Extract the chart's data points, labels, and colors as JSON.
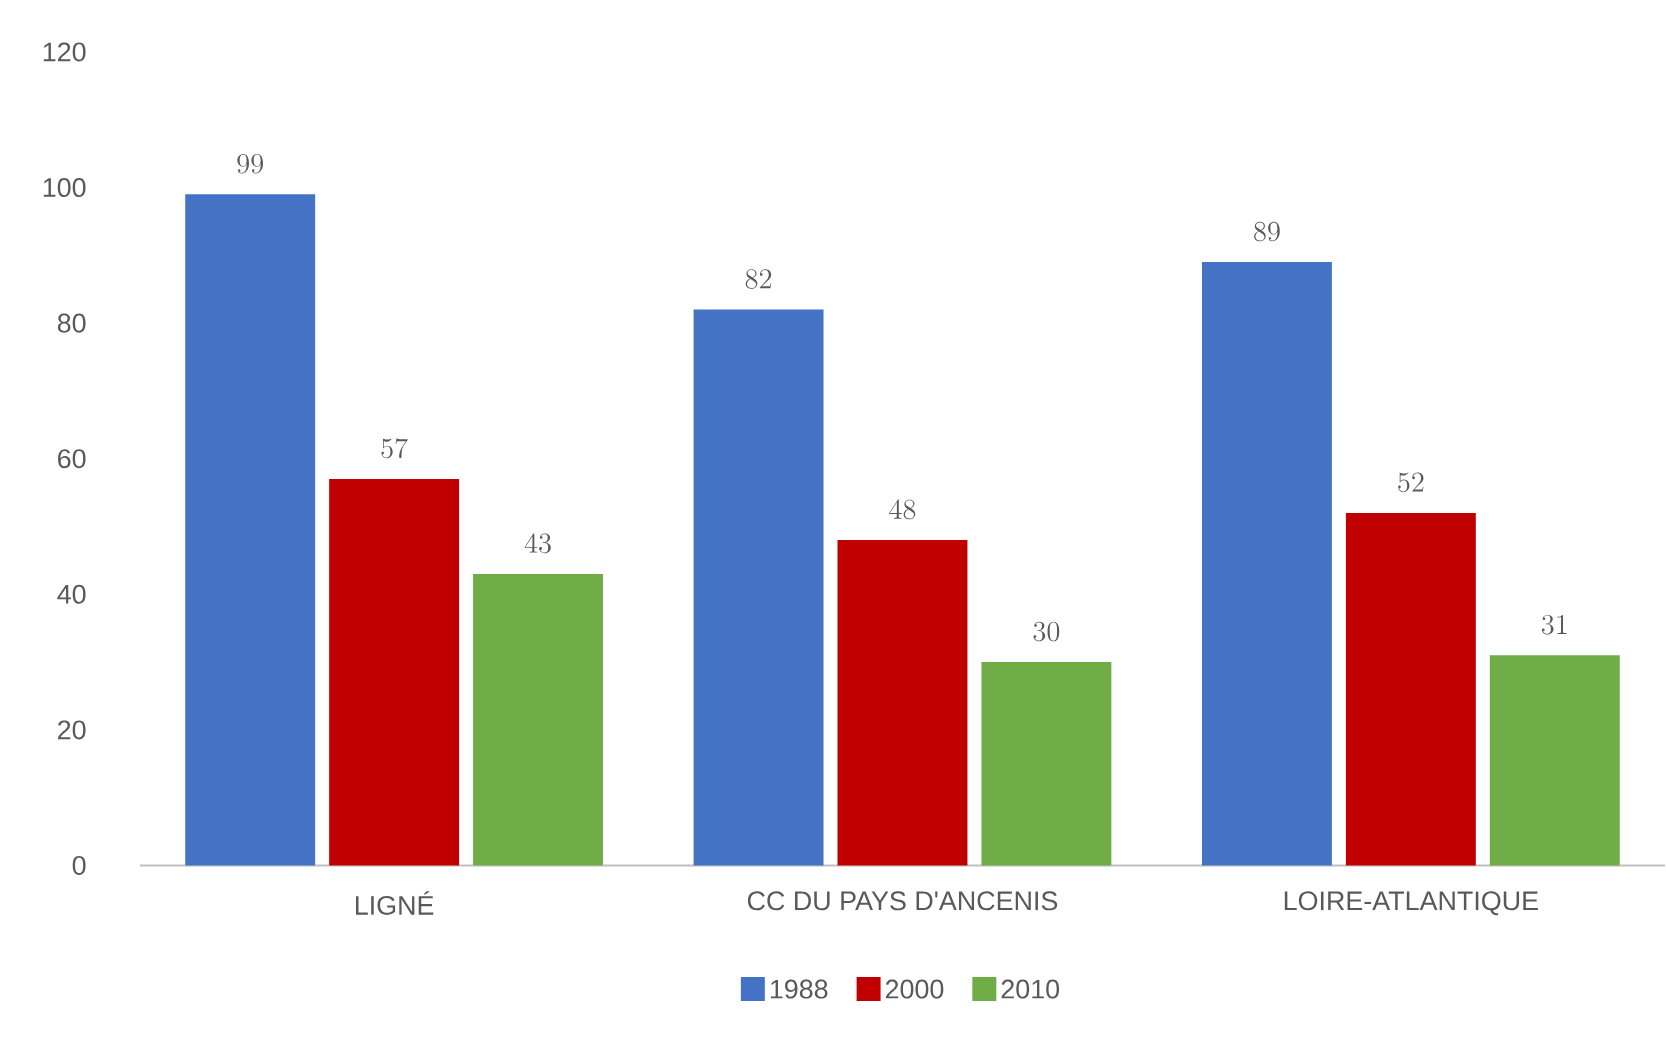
{
  "chart_data": {
    "type": "bar",
    "categories": [
      "LIGNÉ",
      "CC DU PAYS D'ANCENIS",
      "LOIRE-ATLANTIQUE"
    ],
    "series": [
      {
        "name": "1988",
        "color": "#4472c4",
        "values": [
          99,
          82,
          89
        ]
      },
      {
        "name": "2000",
        "color": "#c00000",
        "values": [
          57,
          48,
          52
        ]
      },
      {
        "name": "2010",
        "color": "#70ad47",
        "values": [
          43,
          30,
          31
        ]
      }
    ],
    "ylim": [
      0,
      120
    ],
    "yticks": [
      0,
      20,
      40,
      60,
      80,
      100,
      120
    ],
    "grid": false,
    "legend": "bottom",
    "data_labels": true
  }
}
